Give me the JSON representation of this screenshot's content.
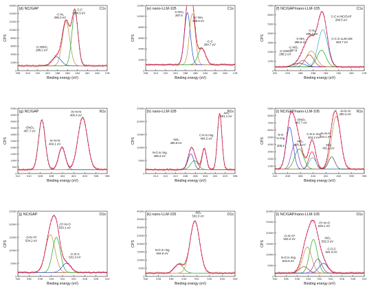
{
  "chart_data": [
    {
      "type": "line",
      "panel": "(d)",
      "sample": "NC/GAP",
      "region": "C1s",
      "xlabel": "Binding energy (eV)",
      "ylabel": "CPS",
      "xlim": [
        296,
        278
      ],
      "ylim": [
        0,
        16000
      ],
      "xticks": [
        296,
        294,
        292,
        290,
        288,
        286,
        284,
        282,
        280,
        278
      ],
      "yticks": [
        0,
        2000,
        4000,
        6000,
        8000,
        10000,
        12000,
        14000,
        16000
      ],
      "baseline": 1200,
      "peaks": [
        {
          "label": "-C-ONO₂",
          "sub": "288.2 eV",
          "center": 288.2,
          "height": 2200,
          "width": 0.9,
          "color": "#1f3fd6"
        },
        {
          "label": "-C-N₃",
          "sub": "286.3 eV",
          "center": 286.3,
          "height": 10800,
          "width": 0.75,
          "color": "#b58a2e"
        },
        {
          "label": "-C-C",
          "sub": "284.5 eV",
          "center": 284.5,
          "height": 13200,
          "width": 0.62,
          "color": "#17a317"
        }
      ],
      "annotations": [
        {
          "text": "-C-N₃",
          "sub": "286.3 eV",
          "x": 287.5,
          "y": 13600
        },
        {
          "text": "-C-C",
          "sub": "284.5 eV",
          "x": 283.6,
          "y": 14700
        },
        {
          "text": "-C-ONO₂",
          "sub": "288.2 eV",
          "x": 291.2,
          "y": 5600
        }
      ]
    },
    {
      "type": "line",
      "panel": "(e)",
      "sample": "nano-LLM-105",
      "region": "C1s",
      "xlabel": "Binding energy (eV)",
      "ylabel": "CPS",
      "xlim": [
        296,
        278
      ],
      "ylim": [
        0,
        12000
      ],
      "xticks": [
        296,
        294,
        292,
        290,
        288,
        286,
        284,
        282,
        280,
        278
      ],
      "yticks": [
        0,
        2000,
        4000,
        6000,
        8000,
        10000,
        12000
      ],
      "baseline": 1100,
      "peaks": [
        {
          "label": "-C-NO₂",
          "sub": "287.6",
          "center": 287.6,
          "height": 9600,
          "width": 0.6,
          "color": "#1f3fd6"
        },
        {
          "label": "-C-NH₂",
          "sub": "286.6 eV",
          "center": 286.6,
          "height": 9400,
          "width": 0.6,
          "color": "#b58a2e"
        },
        {
          "label": "-C-C",
          "sub": "284.7 eV",
          "center": 284.7,
          "height": 3000,
          "width": 0.75,
          "color": "#17a317"
        }
      ],
      "annotations": [
        {
          "text": "-C-NO₂",
          "sub": "287.6",
          "x": 289.3,
          "y": 10600
        },
        {
          "text": "-C-NH₂",
          "sub": "286.6 eV",
          "x": 285.4,
          "y": 9600
        },
        {
          "text": "-C-C",
          "sub": "284.7 eV",
          "x": 283.1,
          "y": 5200
        }
      ]
    },
    {
      "type": "line",
      "panel": "(f)",
      "sample": "NC/GAP/nano-LLM-105",
      "region": "C1s",
      "xlabel": "Binding energy (eV)",
      "ylabel": "CPS",
      "xlim": [
        292,
        278
      ],
      "ylim": [
        0,
        7000
      ],
      "xticks": [
        292,
        290,
        288,
        286,
        284,
        282,
        280,
        278
      ],
      "yticks": [
        0,
        1000,
        2000,
        3000,
        4000,
        5000,
        6000,
        7000
      ],
      "baseline": 400,
      "peaks": [
        {
          "label": "-C-ONO₂",
          "sub": "288.2 eV",
          "center": 288.2,
          "height": 400,
          "width": 0.9,
          "color": "#1f3fd6"
        },
        {
          "label": "-C-NO₂",
          "sub": "287.6",
          "center": 287.6,
          "height": 700,
          "width": 0.65,
          "color": "#8a2fa8"
        },
        {
          "label": "-C-NH₂",
          "sub": "286.6 eV",
          "center": 286.6,
          "height": 1300,
          "width": 0.7,
          "color": "#c21a1a"
        },
        {
          "label": "-C-N₃",
          "sub": "286.3 eV",
          "center": 286.3,
          "height": 1700,
          "width": 0.8,
          "color": "#b58a2e"
        },
        {
          "label": "C-C in NC/GAP",
          "sub": "284.5 eV",
          "center": 284.5,
          "height": 4000,
          "width": 0.75,
          "color": "#2aa8d6"
        },
        {
          "label": "C-C in LLM-105",
          "sub": "284.7 eV",
          "center": 284.7,
          "height": 1800,
          "width": 0.7,
          "color": "#17a317"
        }
      ],
      "annotations": [
        {
          "text": "C-C in NC/GAP",
          "sub": "284.5 eV",
          "x": 281.6,
          "y": 5700
        },
        {
          "text": "-C-N₃",
          "sub": "286.3 eV",
          "x": 286.2,
          "y": 4200
        },
        {
          "text": "-C-NH₂",
          "sub": "286.6 eV",
          "x": 288.0,
          "y": 3300
        },
        {
          "text": "-C-NO₂",
          "sub": "287.6",
          "x": 289.1,
          "y": 2400
        },
        {
          "text": "-C-ONO₂",
          "sub": "288.2 eV",
          "x": 290.4,
          "y": 2000
        },
        {
          "text": "C-C in LLM-105",
          "sub": "284.7 eV",
          "x": 281.5,
          "y": 3300
        }
      ]
    },
    {
      "type": "line",
      "panel": "(g)",
      "sample": "NC/GAP",
      "region": "N1s",
      "xlabel": "Binding energy (eV)",
      "ylabel": "CPS",
      "xlim": [
        412,
        396
      ],
      "ylim": [
        0,
        5000
      ],
      "xticks": [
        412,
        410,
        408,
        406,
        404,
        402,
        400,
        398,
        396
      ],
      "yticks": [
        0,
        500,
        1000,
        1500,
        2000,
        2500,
        3000,
        3500,
        4000,
        4500,
        5000
      ],
      "baseline": 300,
      "peaks": [
        {
          "label": "-ONO₂",
          "sub": "407.7 eV",
          "center": 407.7,
          "height": 3800,
          "width": 0.6,
          "color": "#17a317"
        },
        {
          "label": "-N=N=N",
          "sub": "404.1 eV",
          "center": 404.1,
          "height": 1700,
          "width": 0.6,
          "color": "#1f3fd6"
        },
        {
          "label": "-N=N=N",
          "sub": "400.4 eV",
          "center": 400.4,
          "height": 4000,
          "width": 0.85,
          "color": "#b58a2e"
        }
      ],
      "annotations": [
        {
          "text": "-ONO₂",
          "sub": "407.7 eV",
          "x": 409.9,
          "y": 3450
        },
        {
          "text": "-N=N=N",
          "sub": "404.1 eV",
          "x": 405.4,
          "y": 2450
        },
        {
          "text": "-N=N=N",
          "sub": "400.4 eV",
          "x": 401.6,
          "y": 4650
        }
      ]
    },
    {
      "type": "line",
      "panel": "(h)",
      "sample": "nano-LLM-105",
      "region": "N1s",
      "xlabel": "Binding energy (eV)",
      "ylabel": "CPS",
      "xlim": [
        416,
        398
      ],
      "ylim": [
        0,
        25000
      ],
      "xticks": [
        414,
        412,
        410,
        408,
        406,
        404,
        402,
        400,
        398
      ],
      "yticks": [
        0,
        5000,
        10000,
        15000,
        20000,
        25000
      ],
      "baseline": 1500,
      "peaks": [
        {
          "label": "N-O in ring",
          "sub": "406.2 eV",
          "center": 406.2,
          "height": 3400,
          "width": 0.75,
          "color": "#17a317"
        },
        {
          "label": "-NO₂",
          "sub": "406.9 eV",
          "center": 406.9,
          "height": 6000,
          "width": 0.6,
          "color": "#1f3fd6"
        },
        {
          "label": "C-N in ring",
          "sub": "404.2 eV",
          "center": 404.2,
          "height": 8000,
          "width": 0.45,
          "color": "#c21a1a"
        },
        {
          "label": "-NH₂",
          "sub": "401.1 eV",
          "center": 401.1,
          "height": 21500,
          "width": 0.45,
          "color": "#b58a2e"
        }
      ],
      "annotations": [
        {
          "text": "-NH₂",
          "sub": "401.1 eV",
          "x": 399.8,
          "y": 22800
        },
        {
          "text": "C-N in ring",
          "sub": "404.2 eV",
          "x": 403.8,
          "y": 14300
        },
        {
          "text": "-NO₂",
          "sub": "406.9 eV",
          "x": 409.9,
          "y": 12600
        },
        {
          "text": "N-O in ring",
          "sub": "406.2 eV",
          "x": 413.2,
          "y": 7600
        }
      ]
    },
    {
      "type": "line",
      "panel": "(i)",
      "sample": "NC/GAP/nano-LLM-105",
      "region": "N1s",
      "xlabel": "Binding energy (eV)",
      "ylabel": "CPS",
      "xlim": [
        410,
        396
      ],
      "ylim": [
        0,
        9000
      ],
      "xticks": [
        410,
        408,
        406,
        404,
        402,
        400,
        398,
        396
      ],
      "yticks": [
        0,
        1000,
        2000,
        3000,
        4000,
        5000,
        6000,
        7000,
        8000,
        9000
      ],
      "baseline": 600,
      "peaks": [
        {
          "label": "N-O in ring",
          "sub": "406.2",
          "center": 406.2,
          "height": 2800,
          "width": 0.7,
          "color": "#17a317"
        },
        {
          "label": "-NO₂",
          "sub": "406.9 eV",
          "center": 406.9,
          "height": 3400,
          "width": 0.55,
          "color": "#8a2fa8"
        },
        {
          "label": "-ONO₂",
          "sub": "407.7 eV",
          "center": 407.7,
          "height": 5800,
          "width": 0.55,
          "color": "#1f3fd6"
        },
        {
          "label": "C-N in ring",
          "sub": "404.2 eV",
          "center": 404.2,
          "height": 2400,
          "width": 0.5,
          "color": "#c21a1a"
        },
        {
          "label": "-N=N=N",
          "sub": "404.1 eV",
          "center": 404.1,
          "height": 1600,
          "width": 0.55,
          "color": "#2aa8d6"
        },
        {
          "label": "-NH₂",
          "sub": "401.1 eV",
          "center": 401.1,
          "height": 1700,
          "width": 0.5,
          "color": "#444444"
        },
        {
          "label": "-N=N=N",
          "sub": "400.4 eV",
          "center": 400.4,
          "height": 7300,
          "width": 0.7,
          "color": "#b58a2e"
        }
      ],
      "annotations": [
        {
          "text": "-ONO₂",
          "sub": "407.7 eV",
          "x": 405.9,
          "y": 7300
        },
        {
          "text": "C-N in ring",
          "sub": "404.2 eV",
          "x": 403.9,
          "y": 5300
        },
        {
          "text": "-NO₂",
          "sub": "406.9 eV",
          "x": 406.1,
          "y": 4300
        },
        {
          "text": "N-O",
          "sub": "in ring",
          "x": 409.1,
          "y": 5200
        },
        {
          "text": "406.2",
          "sub": "",
          "x": 409.1,
          "y": 3700
        },
        {
          "text": "-N=N=N",
          "sub": "404.1 eV",
          "x": 402.1,
          "y": 5400
        },
        {
          "text": "-NH₂",
          "sub": "401.1 eV",
          "x": 401.6,
          "y": 3800
        },
        {
          "text": "-N=N=N",
          "sub": "400.4 eV",
          "x": 399.0,
          "y": 8500
        }
      ]
    },
    {
      "type": "line",
      "panel": "(j)",
      "sample": "NC/GAP",
      "region": "O1s",
      "xlabel": "Binding energy (eV)",
      "ylabel": "CPS",
      "xlim": [
        540,
        524
      ],
      "ylim": [
        0,
        25000
      ],
      "xticks": [
        540,
        538,
        536,
        534,
        532,
        530,
        528,
        526,
        524
      ],
      "yticks": [
        0,
        5000,
        10000,
        15000,
        20000,
        25000
      ],
      "baseline": 1500,
      "peaks": [
        {
          "label": "-O-N=O*",
          "sub": "534.2 eV",
          "center": 534.2,
          "height": 14500,
          "width": 0.85,
          "color": "#b58a2e"
        },
        {
          "label": "-O*-N=O",
          "sub": "533.1 eV",
          "center": 533.1,
          "height": 13500,
          "width": 0.7,
          "color": "#17a317"
        },
        {
          "label": "-C-O-C",
          "sub": "531.3 eV",
          "center": 531.3,
          "height": 3500,
          "width": 0.8,
          "color": "#1f3fd6"
        }
      ],
      "annotations": [
        {
          "text": "-O-N=O*",
          "sub": "534.2 eV",
          "x": 537.6,
          "y": 14600
        },
        {
          "text": "-O*-N=O",
          "sub": "533.1 eV",
          "x": 531.6,
          "y": 19600
        },
        {
          "text": "-C-O-C",
          "sub": "531.3 eV",
          "x": 529.8,
          "y": 8200
        }
      ]
    },
    {
      "type": "line",
      "panel": "(k)",
      "sample": "nano-LLM-105",
      "region": "O1s",
      "xlabel": "Binding energy (eV)",
      "ylabel": "CPS",
      "xlim": [
        540,
        526
      ],
      "ylim": [
        0,
        40000
      ],
      "xticks": [
        540,
        538,
        536,
        534,
        532,
        530,
        528,
        526
      ],
      "yticks": [
        0,
        5000,
        10000,
        15000,
        20000,
        25000,
        30000,
        35000,
        40000
      ],
      "baseline": 2000,
      "peaks": [
        {
          "label": "N-O in ring",
          "sub": "534.8 eV",
          "center": 534.8,
          "height": 5500,
          "width": 0.7,
          "color": "#17a317"
        },
        {
          "label": "-NO₂",
          "sub": "532.3 eV",
          "center": 532.3,
          "height": 32000,
          "width": 0.75,
          "color": "#b58a2e"
        }
      ],
      "annotations": [
        {
          "text": "-NO₂",
          "sub": "532.3 eV",
          "x": 531.8,
          "y": 38500
        },
        {
          "text": "N-O in ring",
          "sub": "534.8 eV",
          "x": 537.4,
          "y": 15500
        }
      ]
    },
    {
      "type": "line",
      "panel": "(l)",
      "sample": "NC/GAP/nano-LLM-105",
      "region": "O1s",
      "xlabel": "Binding energy (eV)",
      "ylabel": "CPS",
      "xlim": [
        540,
        524
      ],
      "ylim": [
        0,
        30000
      ],
      "xticks": [
        540,
        538,
        536,
        534,
        532,
        530,
        528,
        526,
        524
      ],
      "yticks": [
        0,
        5000,
        10000,
        15000,
        20000,
        25000,
        30000
      ],
      "baseline": 1500,
      "peaks": [
        {
          "label": "N-O in ring",
          "sub": "534.8 eV",
          "center": 534.8,
          "height": 3000,
          "width": 0.8,
          "color": "#c21a1a"
        },
        {
          "label": "-O-N=O*",
          "sub": "534.2 eV",
          "center": 534.2,
          "height": 12000,
          "width": 0.8,
          "color": "#b58a2e"
        },
        {
          "label": "-O*-N=O",
          "sub": "533.1 eV",
          "center": 533.1,
          "height": 15500,
          "width": 0.7,
          "color": "#17a317"
        },
        {
          "label": "-NO₂",
          "sub": "532.3 eV",
          "center": 532.3,
          "height": 6500,
          "width": 0.7,
          "color": "#8a2fa8"
        },
        {
          "label": "-C-O-C",
          "sub": "531.3 eV",
          "center": 531.3,
          "height": 4500,
          "width": 0.8,
          "color": "#1f3fd6"
        }
      ],
      "annotations": [
        {
          "text": "-O-N=O*",
          "sub": "534.2 eV",
          "x": 537.4,
          "y": 18200
        },
        {
          "text": "-O*-N=O",
          "sub": "533.1 eV",
          "x": 531.2,
          "y": 24200
        },
        {
          "text": "-NO₂",
          "sub": "532.3 eV",
          "x": 530.6,
          "y": 17200
        },
        {
          "text": "-C-O-C",
          "sub": "531.3 eV",
          "x": 529.9,
          "y": 12200
        },
        {
          "text": "N-O in ring",
          "sub": "534.8 eV",
          "x": 537.6,
          "y": 8200
        }
      ]
    }
  ]
}
